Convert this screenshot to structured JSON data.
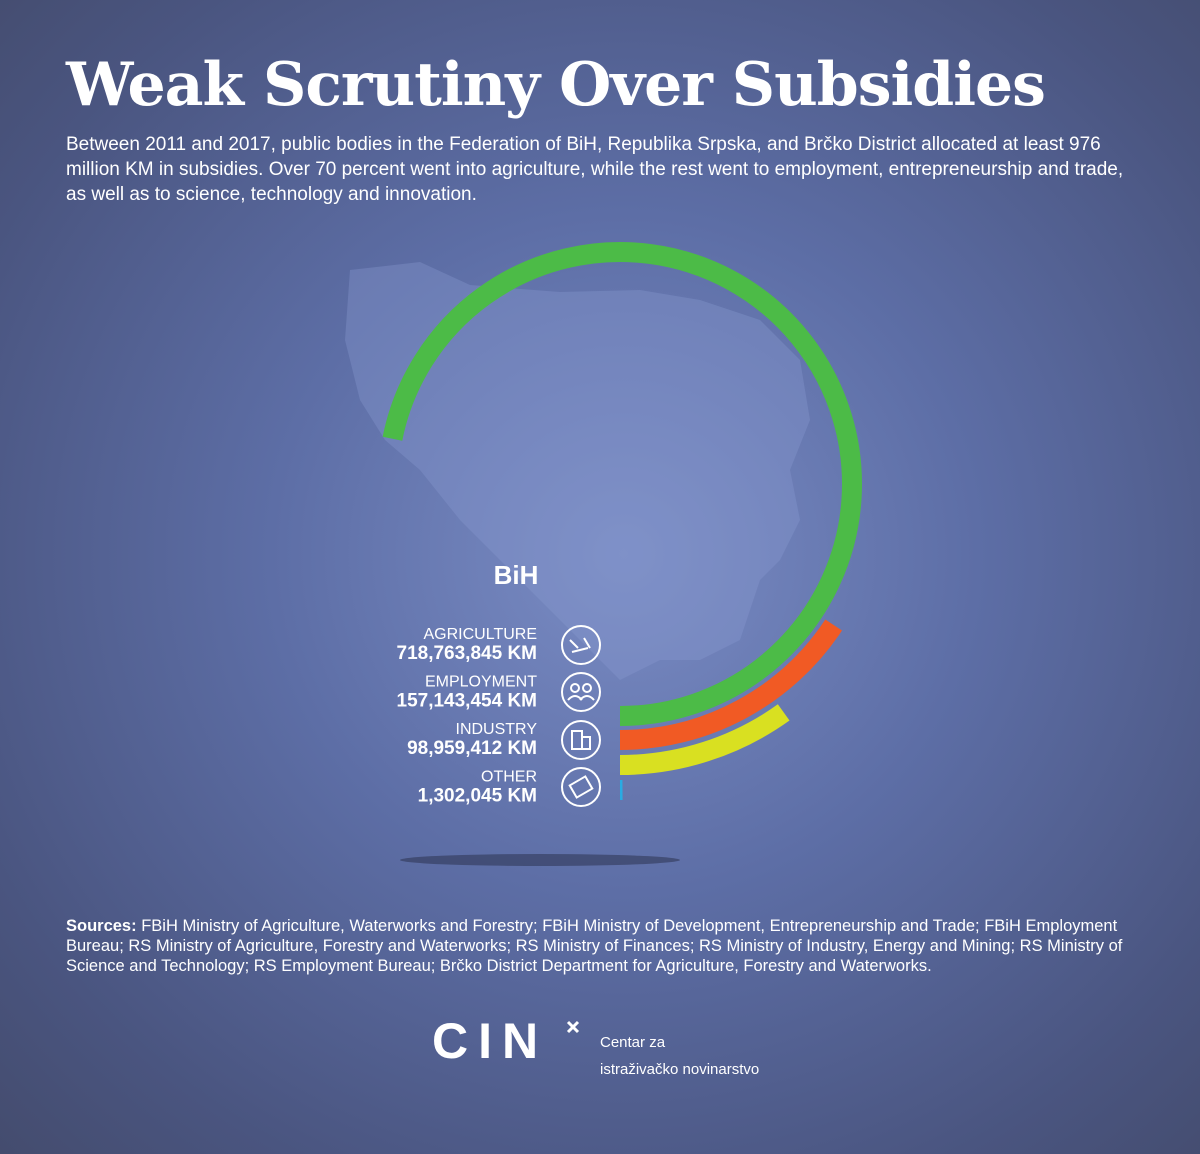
{
  "header": {
    "title": "Weak Scrutiny Over Subsidies",
    "description": "Between 2011 and 2017, public bodies in the Federation of BiH, Republika Srpska, and Brčko District allocated at least 976 million KM in subsidies. Over 70 percent went into agriculture, while the rest went to employment, entrepreneurship and trade, as well as to science, technology and innovation."
  },
  "chart_data": {
    "type": "radial_bar",
    "title": "BiH",
    "categories": [
      "AGRICULTURE",
      "EMPLOYMENT",
      "INDUSTRY",
      "OTHER"
    ],
    "values": [
      718763845,
      157143454,
      98959412,
      1302045
    ],
    "value_labels": [
      "718,763,845 KM",
      "157,143,454 KM",
      "98,959,412 KM",
      "1,302,045 KM"
    ],
    "colors": [
      "#4cbb47",
      "#f15a24",
      "#d9e021",
      "#29abe2"
    ],
    "rlim": [
      0,
      1000000000
    ]
  },
  "footer": {
    "sources_label": "Sources:",
    "sources": "FBiH Ministry of Agriculture, Waterworks and Forestry; FBiH Ministry of Development, Entrepreneurship and Trade; FBiH Employment Bureau; RS Ministry of Agriculture, Forestry and Waterworks; RS Ministry of Finances; RS Ministry of Industry, Energy and Mining; RS Ministry of Science and Technology; RS Employment Bureau; Brčko District Department for Agriculture, Forestry and Waterworks.",
    "logo": "CIN",
    "tagline": [
      "Centar za",
      "istraživačko novinarstvo"
    ]
  }
}
